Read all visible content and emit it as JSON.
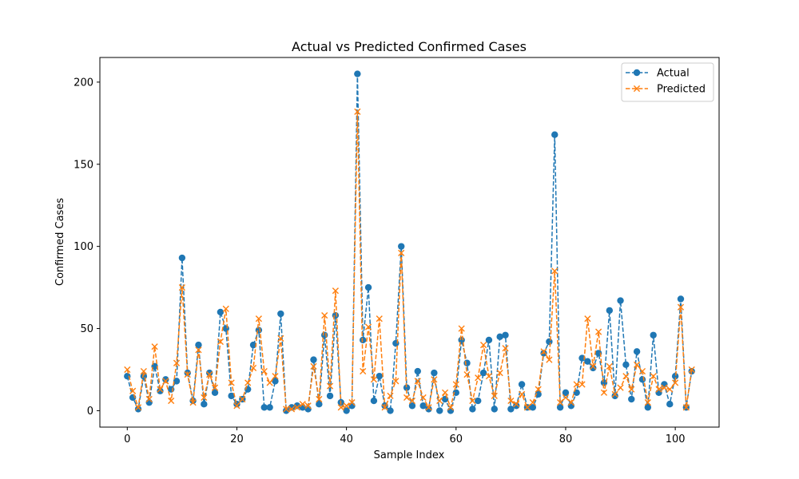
{
  "chart_data": {
    "type": "line",
    "title": "Actual vs Predicted Confirmed Cases",
    "xlabel": "Sample Index",
    "ylabel": "Confirmed Cases",
    "xlim": [
      -5,
      108
    ],
    "ylim": [
      -10,
      215
    ],
    "xticks": [
      0,
      20,
      40,
      60,
      80,
      100
    ],
    "yticks": [
      0,
      50,
      100,
      150,
      200
    ],
    "grid": false,
    "legend_position": "top-right",
    "series": [
      {
        "name": "Actual",
        "color": "#1f77b4",
        "marker": "circle",
        "linestyle": "dashed",
        "values": [
          21,
          8,
          1,
          21,
          5,
          27,
          12,
          19,
          13,
          18,
          93,
          23,
          6,
          40,
          4,
          23,
          11,
          60,
          50,
          9,
          4,
          7,
          13,
          40,
          49,
          2,
          2,
          18,
          59,
          0,
          2,
          3,
          2,
          1,
          31,
          4,
          46,
          9,
          58,
          5,
          0,
          3,
          205,
          43,
          75,
          6,
          21,
          3,
          0,
          41,
          100,
          14,
          3,
          24,
          3,
          1,
          23,
          0,
          7,
          0,
          11,
          43,
          29,
          1,
          6,
          23,
          43,
          1,
          45,
          46,
          1,
          3,
          16,
          2,
          2,
          10,
          35,
          42,
          168,
          2,
          11,
          3,
          11,
          32,
          30,
          26,
          35,
          17,
          61,
          9,
          67,
          28,
          7,
          36,
          19,
          2,
          46,
          11,
          16,
          4,
          21,
          68,
          2,
          24
        ]
      },
      {
        "name": "Predicted",
        "color": "#ff7f0e",
        "marker": "x",
        "linestyle": "dashed",
        "values": [
          25,
          12,
          2,
          24,
          7,
          39,
          13,
          18,
          6,
          29,
          75,
          22,
          5,
          37,
          8,
          22,
          14,
          42,
          62,
          17,
          3,
          7,
          17,
          26,
          56,
          24,
          17,
          21,
          44,
          1,
          1,
          2,
          4,
          3,
          27,
          7,
          58,
          15,
          73,
          2,
          3,
          5,
          182,
          24,
          51,
          19,
          56,
          2,
          9,
          18,
          96,
          8,
          6,
          18,
          8,
          2,
          19,
          6,
          11,
          2,
          16,
          50,
          22,
          6,
          20,
          40,
          21,
          9,
          23,
          38,
          6,
          4,
          10,
          2,
          5,
          13,
          36,
          31,
          85,
          5,
          8,
          5,
          16,
          16,
          56,
          27,
          48,
          11,
          27,
          10,
          14,
          21,
          13,
          28,
          24,
          5,
          21,
          13,
          14,
          13,
          17,
          63,
          2,
          25
        ]
      }
    ]
  }
}
